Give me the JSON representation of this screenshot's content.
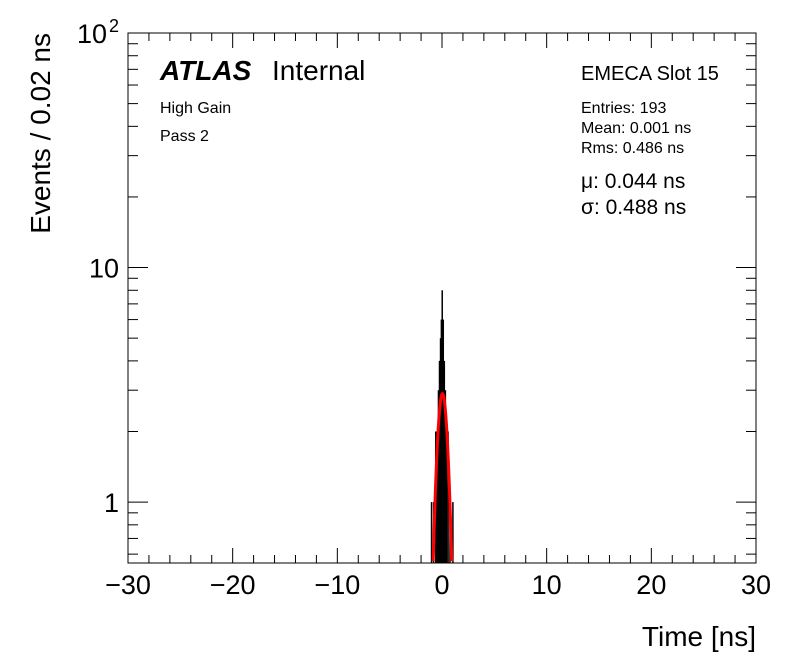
{
  "chart_data": {
    "type": "bar",
    "xlabel": "Time [ns]",
    "ylabel": "Events / 0.02 ns",
    "xlim": [
      -30,
      30
    ],
    "ylim": [
      0.55,
      100
    ],
    "yscale": "log",
    "x_ticks": [
      "−30",
      "−20",
      "−10",
      "0",
      "10",
      "20",
      "30"
    ],
    "y_ticks": [
      {
        "value": 1,
        "label": "1"
      },
      {
        "value": 10,
        "label": "10"
      },
      {
        "value": 100,
        "label": "10",
        "exp": "2"
      }
    ],
    "bins": [
      {
        "x": -1.02,
        "y": 1
      },
      {
        "x": -0.82,
        "y": 1
      },
      {
        "x": -0.62,
        "y": 2
      },
      {
        "x": -0.48,
        "y": 2
      },
      {
        "x": -0.36,
        "y": 3
      },
      {
        "x": -0.26,
        "y": 4
      },
      {
        "x": -0.16,
        "y": 5
      },
      {
        "x": -0.08,
        "y": 6
      },
      {
        "x": 0.0,
        "y": 8
      },
      {
        "x": 0.1,
        "y": 6
      },
      {
        "x": 0.2,
        "y": 4
      },
      {
        "x": 0.3,
        "y": 3
      },
      {
        "x": 0.42,
        "y": 2
      },
      {
        "x": 0.56,
        "y": 2
      },
      {
        "x": 0.74,
        "y": 1
      },
      {
        "x": 1.02,
        "y": 1
      }
    ],
    "fit": {
      "mu": 0.044,
      "sigma": 0.488,
      "amplitude": 2.9,
      "color": "#ff0000"
    }
  },
  "labels": {
    "atlas": "ATLAS",
    "internal": "Internal",
    "gain": "High Gain",
    "pass": "Pass 2",
    "slot": "EMECA Slot 15",
    "entries": "Entries: 193",
    "mean": "Mean: 0.001 ns",
    "rms": "Rms: 0.486 ns",
    "mu": "μ: 0.044 ns",
    "sigma": "σ: 0.488 ns"
  }
}
